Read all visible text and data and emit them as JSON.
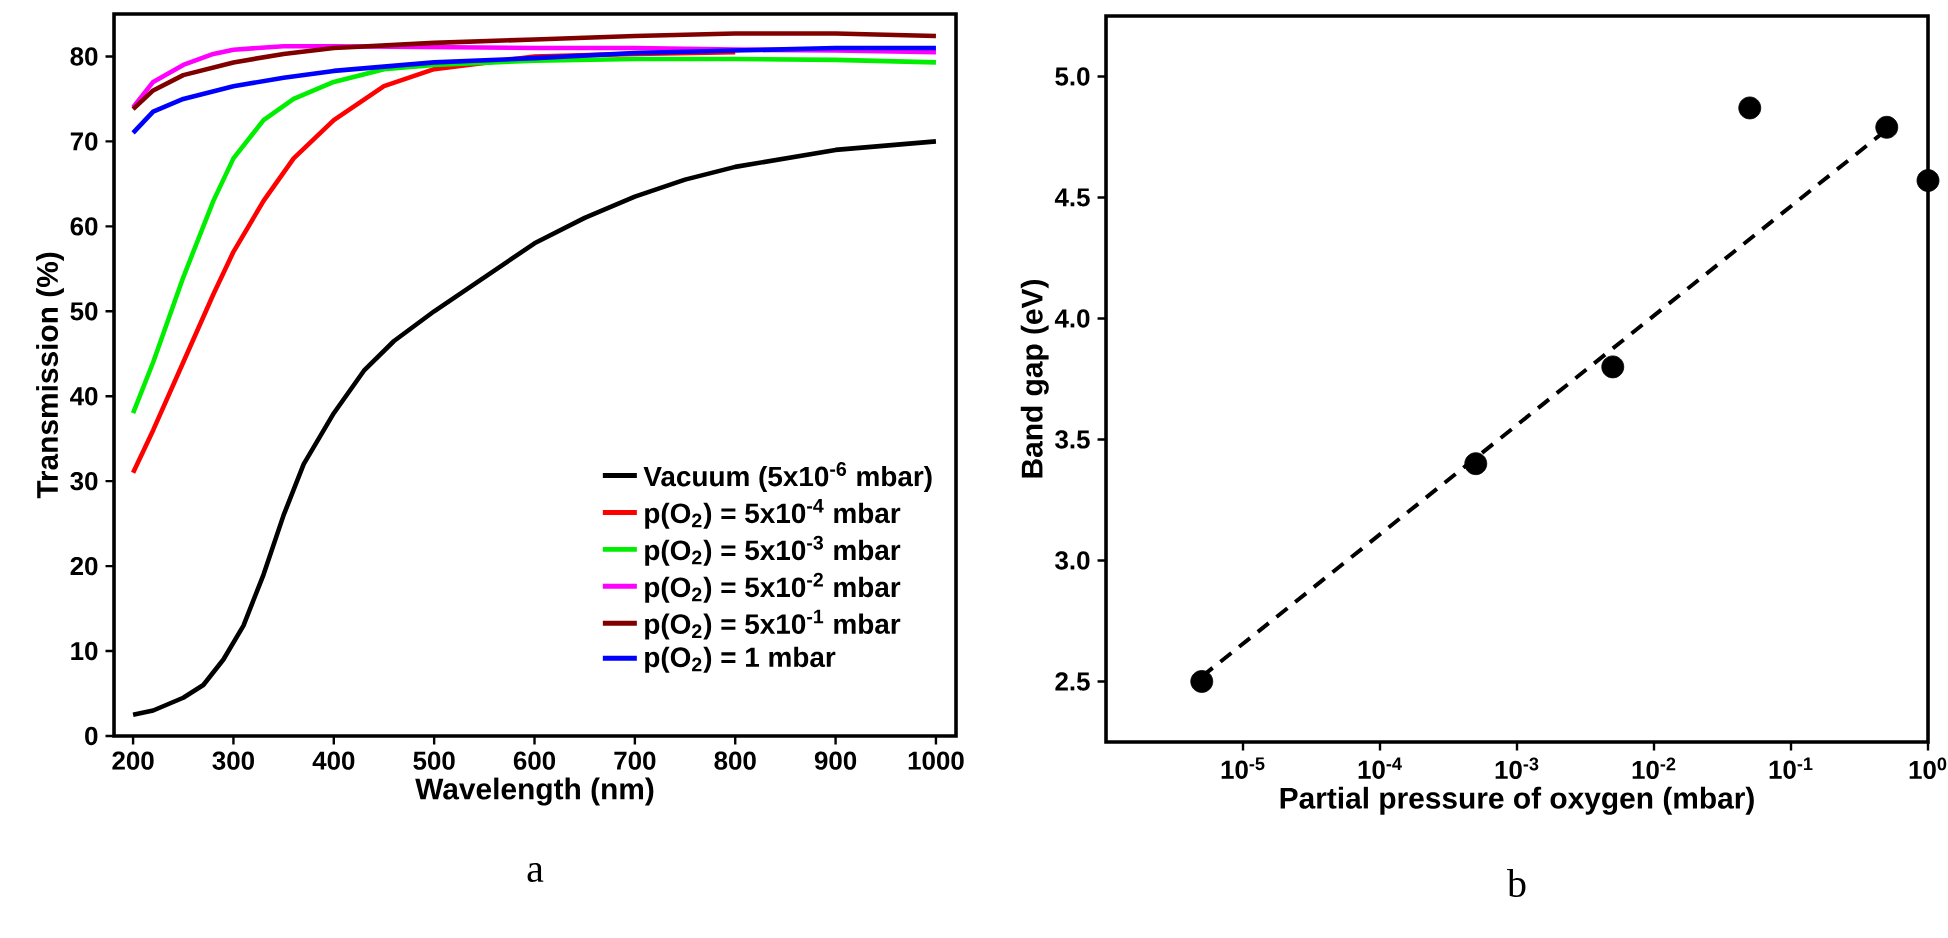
{
  "chart_data": [
    {
      "type": "line",
      "xlabel": "Wavelength (nm)",
      "ylabel": "Transmission (%)",
      "xlim": [
        181,
        1020
      ],
      "ylim": [
        0,
        85
      ],
      "xticks": [
        200,
        300,
        400,
        500,
        600,
        700,
        800,
        900,
        1000
      ],
      "yticks": [
        0,
        10,
        20,
        30,
        40,
        50,
        60,
        70,
        80
      ],
      "legend": "bottom right",
      "annotations": [
        "a"
      ],
      "series": [
        {
          "name": "Vacuum (5x10$^{-6}$ mbar)",
          "color": "#000000",
          "x": [
            200,
            220,
            250,
            270,
            290,
            310,
            330,
            350,
            370,
            400,
            430,
            460,
            500,
            550,
            600,
            650,
            700,
            750,
            800,
            850,
            900,
            950,
            1000
          ],
          "values": [
            2.5,
            3,
            4.5,
            6,
            9,
            13,
            19,
            26,
            32,
            38,
            43,
            46.5,
            50,
            54,
            58,
            61,
            63.5,
            65.5,
            67,
            68,
            69,
            69.5,
            70
          ]
        },
        {
          "name": "p(O$_{2}$) = 5x10$^{-4}$ mbar",
          "color": "#ff0000",
          "x": [
            200,
            220,
            250,
            280,
            300,
            330,
            360,
            400,
            450,
            500,
            550,
            600,
            700,
            800
          ],
          "values": [
            31,
            36,
            44,
            52,
            57,
            63,
            68,
            72.5,
            76.5,
            78.5,
            null,
            80,
            80.3,
            80.5
          ]
        },
        {
          "name": "p(O$_{2}$) = 5x10$^{-3}$ mbar",
          "color": "#00ee00",
          "x": [
            200,
            220,
            250,
            280,
            300,
            330,
            360,
            400,
            450,
            500,
            600,
            700,
            800,
            900,
            1000
          ],
          "values": [
            38,
            44,
            54,
            63,
            68,
            72.5,
            75,
            77,
            78.5,
            79,
            79.5,
            79.7,
            79.7,
            79.6,
            79.3
          ]
        },
        {
          "name": "p(O$_{2}$) = 5x10$^{-2}$ mbar",
          "color": "#ff00ff",
          "x": [
            200,
            220,
            250,
            280,
            300,
            350,
            400,
            500,
            600,
            700,
            800,
            900,
            1000
          ],
          "values": [
            74,
            77,
            79,
            80.3,
            80.8,
            81.2,
            81.2,
            81.1,
            81,
            81,
            80.8,
            80.7,
            80.5
          ]
        },
        {
          "name": "p(O$_{2}$) = 5x10$^{-1}$ mbar",
          "color": "#800000",
          "x": [
            200,
            220,
            250,
            300,
            350,
            400,
            500,
            600,
            700,
            800,
            900,
            1000
          ],
          "values": [
            73.8,
            76,
            77.8,
            79.3,
            80.3,
            81,
            81.6,
            82,
            82.4,
            82.7,
            82.7,
            82.4
          ]
        },
        {
          "name": "p(O$_{2}$) = 1 mbar",
          "color": "#0000ff",
          "x": [
            200,
            220,
            250,
            300,
            350,
            400,
            500,
            600,
            700,
            800,
            900,
            1000
          ],
          "values": [
            71,
            73.5,
            75,
            76.5,
            77.5,
            78.3,
            79.3,
            79.8,
            80.4,
            80.7,
            81,
            81
          ]
        }
      ]
    },
    {
      "type": "scatter",
      "xlabel": "Partial pressure of oxygen (mbar)",
      "ylabel": "Band gap (eV)",
      "log": "x",
      "xlim": [
        1e-06,
        1
      ],
      "ylim": [
        2.25,
        5.25
      ],
      "xticks": [
        {
          "value": 1e-05,
          "label": "10$^{-5}$"
        },
        {
          "value": 0.0001,
          "label": "10$^{-4}$"
        },
        {
          "value": 0.001,
          "label": "10$^{-3}$"
        },
        {
          "value": 0.01,
          "label": "10$^{-2}$"
        },
        {
          "value": 0.1,
          "label": "10$^{-1}$"
        },
        {
          "value": 1,
          "label": "10$^{0}$"
        }
      ],
      "yticks": [
        2.5,
        {
          "value": 3,
          "label": "3.0"
        },
        3.5,
        {
          "value": 4,
          "label": "4.0"
        },
        4.5,
        {
          "value": 5,
          "label": "5.0"
        }
      ],
      "annotations": [
        "b"
      ],
      "series": [
        {
          "marker": "circle",
          "color": "#000000",
          "x": [
            5e-06,
            0.0005,
            0.005,
            0.05,
            0.5,
            1
          ],
          "values": [
            2.5,
            3.4,
            3.8,
            4.87,
            4.79,
            4.57
          ]
        },
        {
          "type": "line",
          "line_style": "dashed",
          "color": "#000000",
          "x": [
            5e-06,
            0.5
          ],
          "values": [
            2.52,
            4.78
          ]
        }
      ]
    }
  ]
}
